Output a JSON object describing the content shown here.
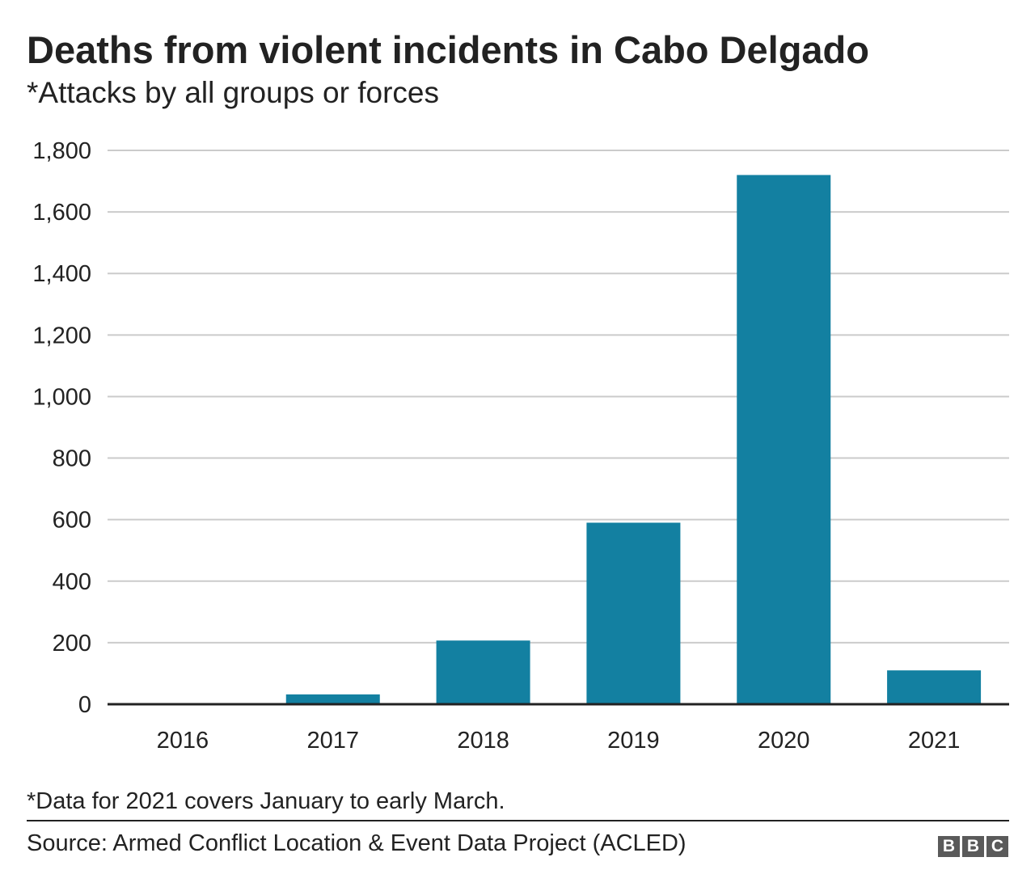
{
  "chart_data": {
    "type": "bar",
    "title": "Deaths from violent incidents in Cabo Delgado",
    "subtitle": "*Attacks by all groups or forces",
    "categories": [
      "2016",
      "2017",
      "2018",
      "2019",
      "2020",
      "2021"
    ],
    "values": [
      0,
      32,
      207,
      590,
      1720,
      110
    ],
    "xlabel": "",
    "ylabel": "",
    "ylim": [
      0,
      1800
    ],
    "yticks": [
      0,
      200,
      400,
      600,
      800,
      1000,
      1200,
      1400,
      1600,
      1800
    ],
    "ytick_labels": [
      "0",
      "200",
      "400",
      "600",
      "800",
      "1,000",
      "1,200",
      "1,400",
      "1,600",
      "1,800"
    ],
    "grid": true,
    "legend": "none",
    "bar_color": "#1380a1",
    "grid_color": "#cbcbcb",
    "axis_color": "#222222",
    "footnote": "*Data for 2021 covers January to early March.",
    "source": "Source: Armed Conflict Location & Event Data Project (ACLED)"
  },
  "branding": {
    "logo_letters": [
      "B",
      "B",
      "C"
    ],
    "logo_color": "#5a5a5a"
  }
}
